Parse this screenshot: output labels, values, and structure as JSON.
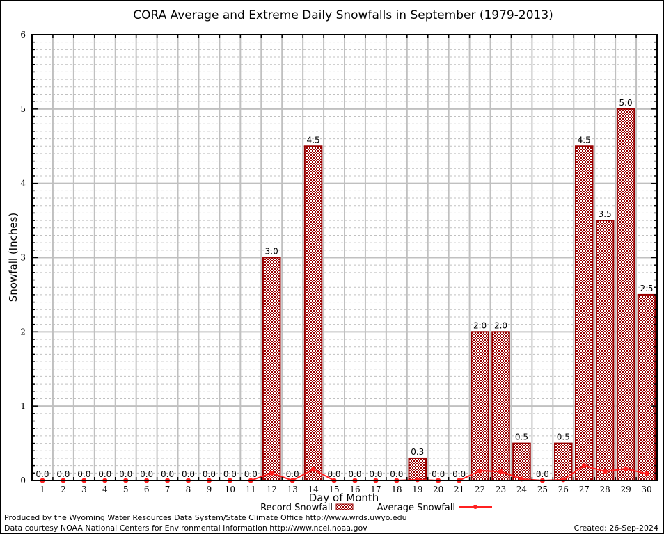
{
  "chart_data": {
    "type": "bar",
    "title": "CORA Average and Extreme Daily Snowfalls in September (1979-2013)",
    "xlabel": "Day of Month",
    "ylabel": "Snowfall (Inches)",
    "ylim": [
      0,
      6
    ],
    "yticks": [
      "0",
      "1",
      "2",
      "3",
      "4",
      "5",
      "6"
    ],
    "grid": true,
    "legend_placement": "bottom-center",
    "categories": [
      "1",
      "2",
      "3",
      "4",
      "5",
      "6",
      "7",
      "8",
      "9",
      "10",
      "11",
      "12",
      "13",
      "14",
      "15",
      "16",
      "17",
      "18",
      "19",
      "20",
      "21",
      "22",
      "23",
      "24",
      "25",
      "26",
      "27",
      "28",
      "29",
      "30"
    ],
    "series": [
      {
        "name": "Record Snowfall",
        "type": "bar",
        "color": "#990000",
        "values": [
          0.0,
          0.0,
          0.0,
          0.0,
          0.0,
          0.0,
          0.0,
          0.0,
          0.0,
          0.0,
          0.0,
          3.0,
          0.0,
          4.5,
          0.0,
          0.0,
          0.0,
          0.0,
          0.3,
          0.0,
          0.0,
          2.0,
          2.0,
          0.5,
          0.0,
          0.5,
          4.5,
          3.5,
          5.0,
          2.5
        ],
        "labels": [
          "0.0",
          "0.0",
          "0.0",
          "0.0",
          "0.0",
          "0.0",
          "0.0",
          "0.0",
          "0.0",
          "0.0",
          "0.0",
          "3.0",
          "0.0",
          "4.5",
          "0.0",
          "0.0",
          "0.0",
          "0.0",
          "0.3",
          "0.0",
          "0.0",
          "2.0",
          "2.0",
          "0.5",
          "0.0",
          "0.5",
          "4.5",
          "3.5",
          "5.0",
          "2.5"
        ]
      },
      {
        "name": "Average Snowfall",
        "type": "line",
        "color": "#ff2020",
        "values": [
          0,
          0,
          0,
          0,
          0,
          0,
          0,
          0,
          0,
          0,
          0,
          0.1,
          0,
          0.15,
          0,
          0,
          0,
          0,
          0.01,
          0,
          0,
          0.13,
          0.12,
          0.02,
          0,
          0.01,
          0.2,
          0.12,
          0.16,
          0.09
        ]
      }
    ]
  },
  "footer": {
    "line1": "Produced by the Wyoming Water Resources Data System/State Climate Office http://www.wrds.uwyo.edu",
    "line2": "Data courtesy NOAA National Centers for Environmental Information http://www.ncei.noaa.gov",
    "created": "Created: 26-Sep-2024"
  }
}
